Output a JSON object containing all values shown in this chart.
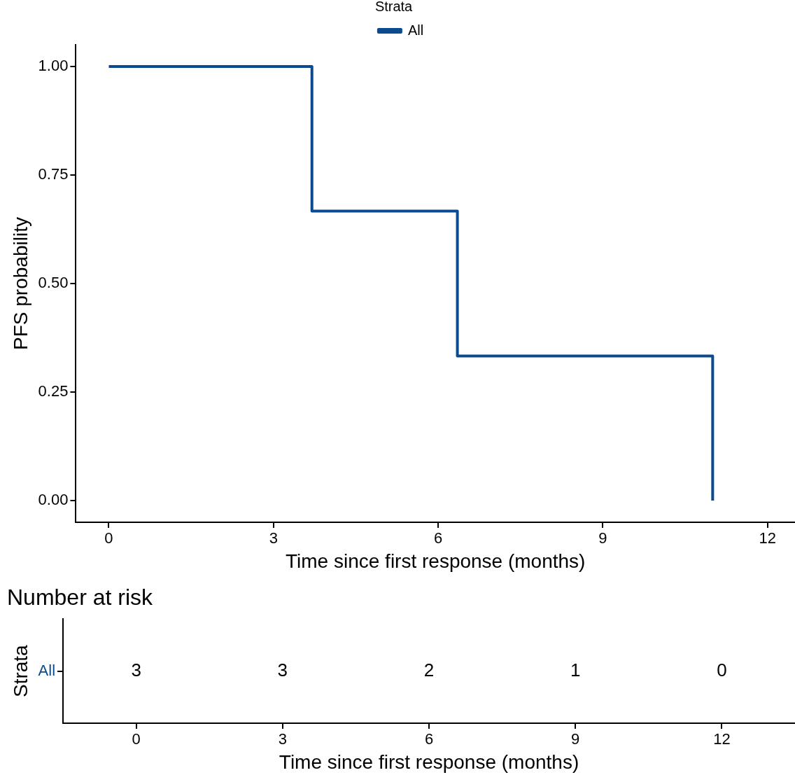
{
  "chart_data": [
    {
      "type": "step",
      "xlabel": "Time since first response (months)",
      "ylabel": "PFS probability",
      "legend_title": "Strata",
      "legend": "top",
      "x": [
        0,
        3.7,
        6.35,
        11
      ],
      "series": [
        {
          "name": "All",
          "color": "#0b4a8c",
          "values": [
            1,
            0.667,
            0.333,
            0
          ]
        }
      ],
      "xlim": [
        -0.6,
        12.5
      ],
      "xticks": [
        0,
        3,
        6,
        9,
        12
      ],
      "ylim": [
        -0.05,
        1.05
      ],
      "yticks": [
        {
          "value": 1,
          "label": "1.00"
        },
        {
          "value": 0.75,
          "label": "0.75"
        },
        {
          "value": 0.5,
          "label": "0.50"
        },
        {
          "value": 0.25,
          "label": "0.25"
        },
        {
          "value": 0,
          "label": "0.00"
        }
      ],
      "grid": false,
      "marker": "none",
      "line_style": "solid"
    },
    {
      "type": "heatmap",
      "title": "Number at risk",
      "xlabel": "Time since first response (months)",
      "ylabel": "Strata",
      "categories": [
        "0",
        "3",
        "6",
        "9",
        "12"
      ],
      "y_categories": [
        "All"
      ],
      "cells": [
        [
          3,
          3,
          2,
          1,
          0
        ]
      ],
      "data_labels": true
    }
  ]
}
